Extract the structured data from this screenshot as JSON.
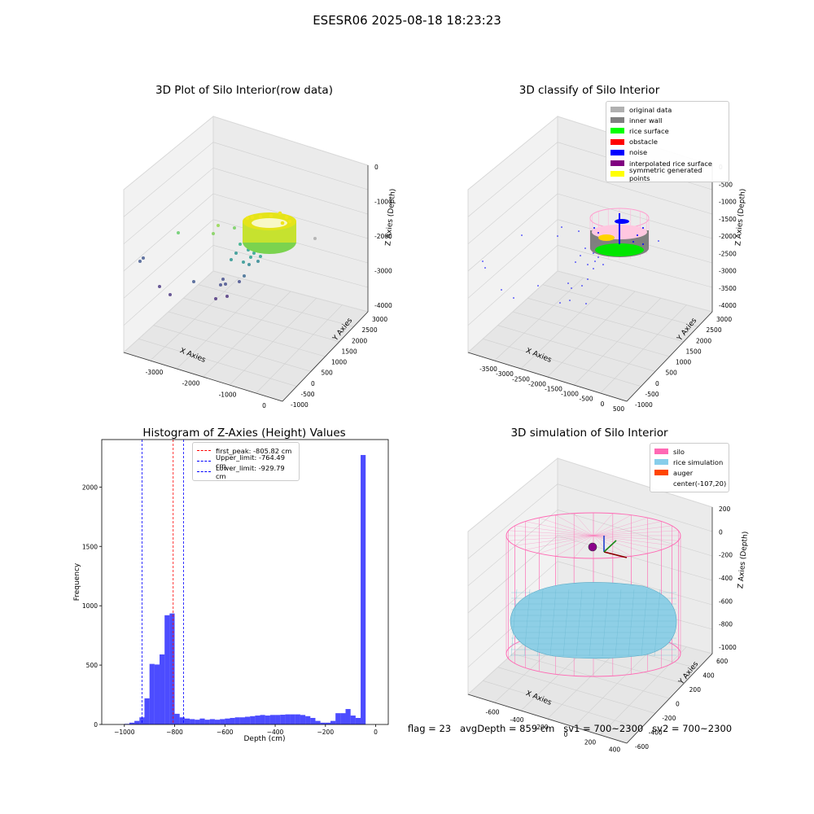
{
  "figure": {
    "suptitle": "ESESR06 2025-08-18 18:23:23",
    "status_line": "flag = 23   avgDepth = 859 cm   sv1 = 700~2300   sv2 = 700~2300"
  },
  "panel1": {
    "title": "3D Plot of Silo Interior(row data)",
    "xlabel": "X Axies",
    "ylabel": "Y Axies",
    "zlabel": "Z Axies (Depth)",
    "xticks": [
      "-3000",
      "-2000",
      "-1000",
      "0"
    ],
    "yticks": [
      "-1000",
      "-500",
      "0",
      "500",
      "1000",
      "1500",
      "2000",
      "2500",
      "3000"
    ],
    "zticks": [
      "0",
      "-1000",
      "-2000",
      "-3000",
      "-4000"
    ],
    "colormap": "viridis"
  },
  "panel2": {
    "title": "3D classify of Silo Interior",
    "xlabel": "X Axies",
    "ylabel": "Y Axies",
    "zlabel": "Z Axies (Depth)",
    "xticks": [
      "-3500",
      "-3000",
      "-2500",
      "-2000",
      "-1500",
      "-1000",
      "-500",
      "0",
      "500"
    ],
    "yticks": [
      "-1000",
      "-500",
      "0",
      "500",
      "1000",
      "1500",
      "2000",
      "2500",
      "3000"
    ],
    "zticks": [
      "0",
      "-500",
      "-1000",
      "-1500",
      "-2000",
      "-2500",
      "-3000",
      "-3500",
      "-4000"
    ],
    "legend": [
      {
        "label": "original data",
        "color": "#b0b0b0"
      },
      {
        "label": "inner wall",
        "color": "#808080"
      },
      {
        "label": "rice surface",
        "color": "#00ff00"
      },
      {
        "label": "obstacle",
        "color": "#ff0000"
      },
      {
        "label": "noise",
        "color": "#0000ff"
      },
      {
        "label": "interpolated rice surface",
        "color": "#800080"
      },
      {
        "label": "symmetric generated points",
        "color": "#ffff00"
      }
    ]
  },
  "panel3": {
    "title": "Histogram of Z-Axies (Height) Values",
    "xlabel": "Depth (cm)",
    "ylabel": "Frequency",
    "legend": [
      {
        "label": "first_peak: -805.82 cm",
        "color": "#ff0000"
      },
      {
        "label": "Upper_limit: -764.49 cm",
        "color": "#0000ff"
      },
      {
        "label": "Lower_limit: -929.79 cm",
        "color": "#0000ff"
      }
    ]
  },
  "panel4": {
    "title": "3D simulation of Silo Interior",
    "xlabel": "X Axies",
    "ylabel": "Y Axies",
    "zlabel": "Z Axies (Depth)",
    "xticks": [
      "-600",
      "-400",
      "-200",
      "0",
      "200",
      "400"
    ],
    "yticks": [
      "-600",
      "-400",
      "-200",
      "0",
      "200",
      "400",
      "600"
    ],
    "zticks": [
      "200",
      "0",
      "-200",
      "-400",
      "-600",
      "-800",
      "-1000"
    ],
    "legend": [
      {
        "label": "silo",
        "color": "#ff69b4"
      },
      {
        "label": "rice simulation",
        "color": "#87ceeb"
      },
      {
        "label": "auger",
        "color": "#ff4500"
      },
      {
        "label": "center(-107,20)",
        "color": ""
      }
    ]
  },
  "chart_data": [
    {
      "type": "scatter",
      "title": "3D Plot of Silo Interior(row data)",
      "xlabel": "X Axies",
      "ylabel": "Y Axies",
      "zlabel": "Z Axies (Depth)",
      "xlim": [
        -3500,
        500
      ],
      "ylim": [
        -1000,
        3000
      ],
      "zlim": [
        -4000,
        0
      ],
      "colormap": "viridis",
      "grid": true
    },
    {
      "type": "scatter",
      "title": "3D classify of Silo Interior",
      "xlabel": "X Axies",
      "ylabel": "Y Axies",
      "zlabel": "Z Axies (Depth)",
      "xlim": [
        -3500,
        500
      ],
      "ylim": [
        -1000,
        3000
      ],
      "zlim": [
        -4000,
        0
      ],
      "series": [
        {
          "name": "original data"
        },
        {
          "name": "inner wall"
        },
        {
          "name": "rice surface"
        },
        {
          "name": "obstacle"
        },
        {
          "name": "noise"
        },
        {
          "name": "interpolated rice surface"
        },
        {
          "name": "symmetric generated points"
        }
      ],
      "legend_position": "top-right",
      "grid": true
    },
    {
      "type": "bar",
      "title": "Histogram of Z-Axies (Height) Values",
      "xlabel": "Depth (cm)",
      "ylabel": "Frequency",
      "xlim": [
        -1090,
        50
      ],
      "ylim": [
        0,
        2400
      ],
      "xticks": [
        -1000,
        -800,
        -600,
        -400,
        -200,
        0
      ],
      "yticks": [
        0,
        500,
        1000,
        1500,
        2000
      ],
      "bin_width": 20,
      "bin_starts": [
        -1000,
        -980,
        -960,
        -940,
        -920,
        -900,
        -880,
        -860,
        -840,
        -820,
        -800,
        -780,
        -760,
        -740,
        -720,
        -700,
        -680,
        -660,
        -640,
        -620,
        -600,
        -580,
        -560,
        -540,
        -520,
        -500,
        -480,
        -460,
        -440,
        -420,
        -400,
        -380,
        -360,
        -340,
        -320,
        -300,
        -280,
        -260,
        -240,
        -220,
        -200,
        -180,
        -160,
        -140,
        -120,
        -100,
        -80,
        -60,
        -40,
        -20
      ],
      "values": [
        5,
        15,
        30,
        60,
        220,
        510,
        505,
        590,
        920,
        935,
        90,
        60,
        50,
        45,
        40,
        50,
        40,
        45,
        40,
        45,
        50,
        55,
        60,
        60,
        65,
        70,
        75,
        80,
        75,
        80,
        80,
        82,
        85,
        85,
        85,
        80,
        70,
        55,
        30,
        15,
        15,
        30,
        95,
        95,
        130,
        75,
        55,
        2270,
        0,
        0
      ],
      "vlines": [
        {
          "label": "first_peak: -805.82 cm",
          "x": -805.82,
          "color": "#ff0000"
        },
        {
          "label": "Upper_limit: -764.49 cm",
          "x": -764.49,
          "color": "#0000ff"
        },
        {
          "label": "Lower_limit: -929.79 cm",
          "x": -929.79,
          "color": "#0000ff"
        }
      ],
      "bar_color": "#0000ff",
      "legend_position": "top-center",
      "grid": false
    },
    {
      "type": "scatter",
      "title": "3D simulation of Silo Interior",
      "xlabel": "X Axies",
      "ylabel": "Y Axies",
      "zlabel": "Z Axies (Depth)",
      "xlim": [
        -700,
        500
      ],
      "ylim": [
        -700,
        700
      ],
      "zlim": [
        -1000,
        300
      ],
      "series": [
        {
          "name": "silo"
        },
        {
          "name": "rice simulation"
        },
        {
          "name": "auger"
        },
        {
          "name": "center(-107,20)"
        }
      ],
      "legend_position": "top-right",
      "grid": true
    }
  ]
}
